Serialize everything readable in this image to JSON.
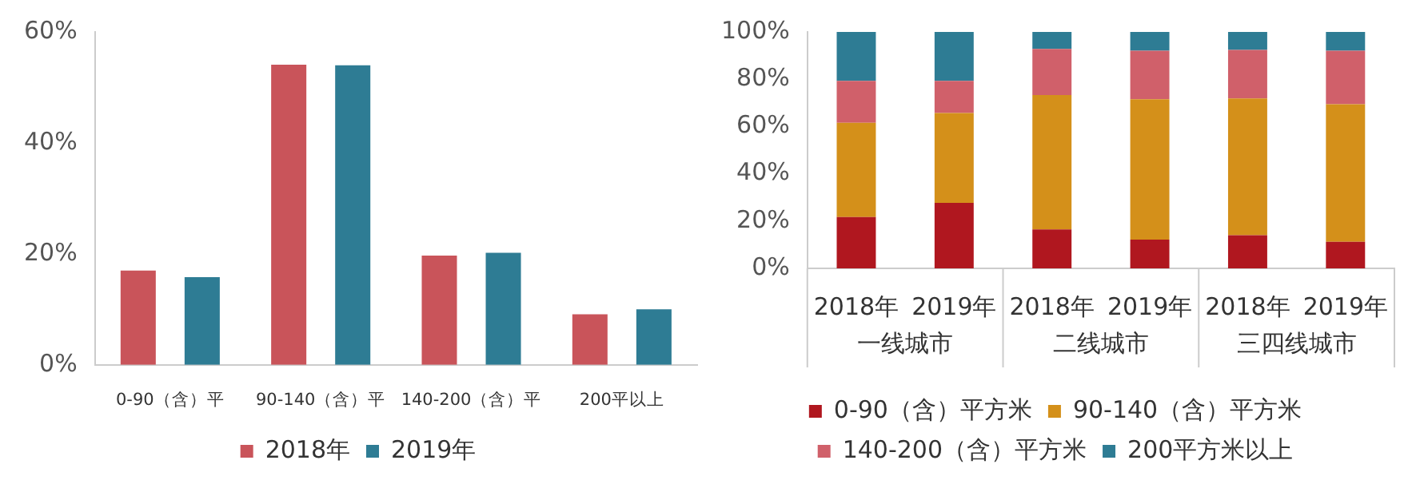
{
  "chart_data": [
    {
      "type": "bar",
      "categories": [
        "0-90（含）平",
        "90-140（含）平",
        "140-200（含）平",
        "200平以上"
      ],
      "series": [
        {
          "name": "2018年",
          "color": "#c9545a",
          "values": [
            17.0,
            54.1,
            19.7,
            9.1
          ]
        },
        {
          "name": "2019年",
          "color": "#2e7c94",
          "values": [
            15.8,
            54.0,
            20.2,
            10.0
          ]
        }
      ],
      "ylim": [
        0,
        60
      ],
      "yticks": [
        {
          "value": 0,
          "label": "0%"
        },
        {
          "value": 20,
          "label": "20%"
        },
        {
          "value": 40,
          "label": "40%"
        },
        {
          "value": 60,
          "label": "60%"
        }
      ],
      "grid": false,
      "legend": "bottom"
    },
    {
      "type": "bar",
      "stacked": true,
      "categories": [
        "2018年",
        "2019年",
        "2018年",
        "2019年",
        "2018年",
        "2019年"
      ],
      "series": [
        {
          "name": "0-90（含）平方米",
          "color": "#b0171f",
          "values": [
            21.7,
            27.7,
            16.5,
            12.2,
            14.0,
            11.2
          ]
        },
        {
          "name": "90-140（含）平方米",
          "color": "#d4901a",
          "values": [
            39.9,
            38.0,
            56.8,
            59.3,
            57.9,
            58.2
          ]
        },
        {
          "name": "140-200（含）平方米",
          "color": "#d0606a",
          "values": [
            17.7,
            13.6,
            19.5,
            20.6,
            20.5,
            22.7
          ]
        },
        {
          "name": "200平方米以上",
          "color": "#2e7c94",
          "values": [
            20.7,
            20.7,
            7.2,
            7.9,
            7.6,
            7.9
          ]
        }
      ],
      "ylim": [
        0,
        100
      ],
      "yticks": [
        {
          "value": 0,
          "label": "0%"
        },
        {
          "value": 20,
          "label": "20%"
        },
        {
          "value": 40,
          "label": "40%"
        },
        {
          "value": 60,
          "label": "60%"
        },
        {
          "value": 80,
          "label": "80%"
        },
        {
          "value": 100,
          "label": "100%"
        }
      ],
      "annotations": [
        "一线城市",
        "二线城市",
        "三四线城市"
      ],
      "grid": false,
      "legend": "bottom"
    }
  ]
}
